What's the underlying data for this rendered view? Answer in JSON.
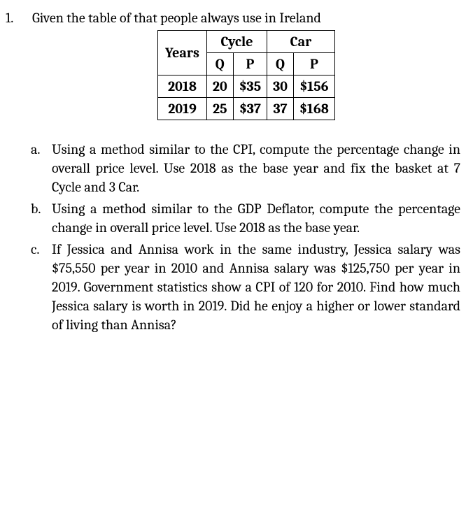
{
  "question": {
    "number": "1.",
    "stem": "Given the table of that people always use in Ireland"
  },
  "table": {
    "years_header": "Years",
    "col_cycle": "Cycle",
    "col_car": "Car",
    "sub_q": "Q",
    "sub_p": "P",
    "rows": [
      {
        "year": "2018",
        "cycle_q": "20",
        "cycle_p": "$35",
        "car_q": "30",
        "car_p": "$156"
      },
      {
        "year": "2019",
        "cycle_q": "25",
        "cycle_p": "$37",
        "car_q": "37",
        "car_p": "$168"
      }
    ]
  },
  "parts": {
    "a": {
      "letter": "a.",
      "text": "Using a method similar to the CPI, compute the percentage change in overall price level. Use 2018 as the base year and fix the basket at 7 Cycle and 3 Car."
    },
    "b": {
      "letter": "b.",
      "text": "Using a method similar to the GDP Deflator, compute the percentage change in overall price level. Use 2018 as the base year."
    },
    "c": {
      "letter": "c.",
      "text": "If Jessica and Annisa work in the same industry, Jessica salary was $75,550 per year in 2010 and Annisa salary was $125,750 per year in 2019. Government statistics show a CPI of 120 for 2010. Find how much Jessica salary is worth in 2019. Did he enjoy a higher or lower standard of living than Annisa?"
    }
  }
}
